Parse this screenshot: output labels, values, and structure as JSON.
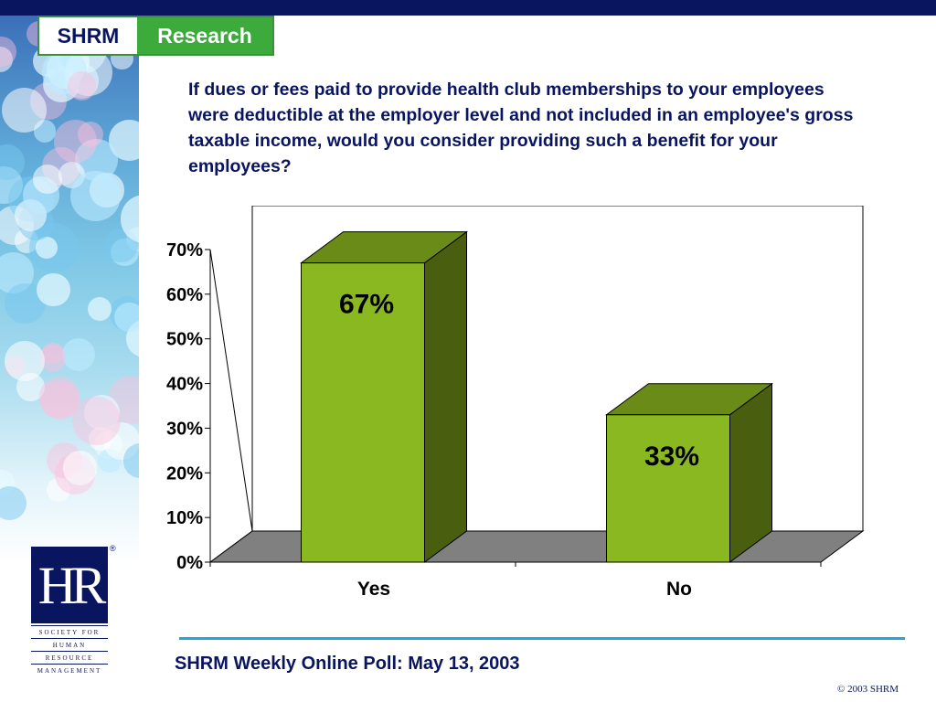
{
  "header": {
    "brand": "SHRM",
    "section": "Research"
  },
  "question": "If dues or fees paid to provide health club memberships to your employees were deductible at the employer level and not included in an employee's gross taxable income, would you consider providing such a benefit for your employees?",
  "chart_data": {
    "type": "bar",
    "categories": [
      "Yes",
      "No"
    ],
    "values": [
      67,
      33
    ],
    "data_labels": [
      "67%",
      "33%"
    ],
    "ylim": [
      0,
      70
    ],
    "yticks": [
      "0%",
      "10%",
      "20%",
      "30%",
      "40%",
      "50%",
      "60%",
      "70%"
    ],
    "style": "3d",
    "bar_color": "#8ab821",
    "grid": false,
    "legend": "none"
  },
  "footer": {
    "title": "SHRM Weekly Online Poll: May 13, 2003",
    "copyright": "© 2003 SHRM"
  },
  "hr_logo": {
    "mark": "HR",
    "registered": "®",
    "lines": [
      "SOCIETY FOR",
      "HUMAN",
      "RESOURCE",
      "MANAGEMENT"
    ]
  },
  "colors": {
    "navy": "#0a1560",
    "green": "#3cab3c",
    "accent_line": "#1ca8dc"
  }
}
